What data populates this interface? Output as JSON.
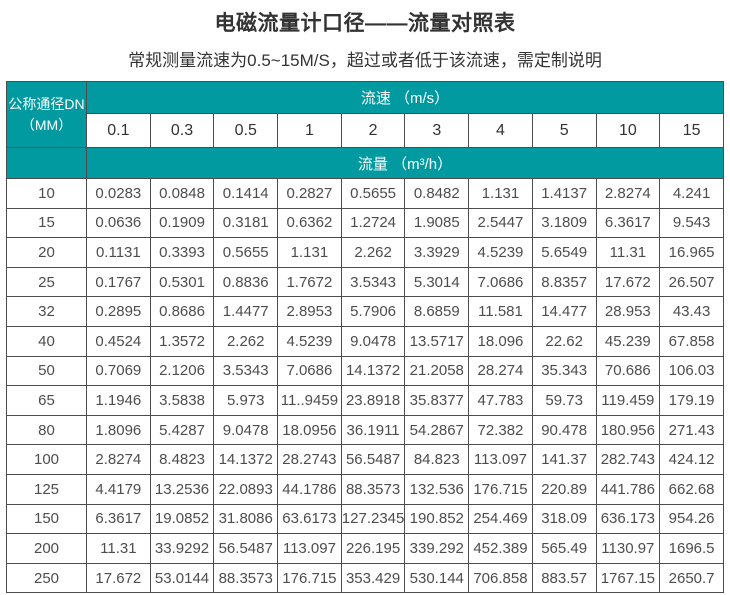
{
  "page": {
    "title": "电磁流量计口径——流量对照表",
    "subtitle": "常规测量流速为0.5~15M/S，超过或者低于该流速，需定制说明"
  },
  "colors": {
    "header_teal": "#009aa0",
    "border": "#4d4d4d",
    "body_text": "#4d4d4d"
  },
  "table": {
    "corner_header_line1": "公称通径DN",
    "corner_header_line2": "（MM）",
    "speed_header": "流速 （m/s）",
    "flow_header": "流量 （m³/h）",
    "speeds": [
      "0.1",
      "0.3",
      "0.5",
      "1",
      "2",
      "3",
      "4",
      "5",
      "10",
      "15"
    ],
    "rows": [
      {
        "dn": "10",
        "values": [
          "0.0283",
          "0.0848",
          "0.1414",
          "0.2827",
          "0.5655",
          "0.8482",
          "1.131",
          "1.4137",
          "2.8274",
          "4.241"
        ]
      },
      {
        "dn": "15",
        "values": [
          "0.0636",
          "0.1909",
          "0.3181",
          "0.6362",
          "1.2724",
          "1.9085",
          "2.5447",
          "3.1809",
          "6.3617",
          "9.543"
        ]
      },
      {
        "dn": "20",
        "values": [
          "0.1131",
          "0.3393",
          "0.5655",
          "1.131",
          "2.262",
          "3.3929",
          "4.5239",
          "5.6549",
          "11.31",
          "16.965"
        ]
      },
      {
        "dn": "25",
        "values": [
          "0.1767",
          "0.5301",
          "0.8836",
          "1.7672",
          "3.5343",
          "5.3014",
          "7.0686",
          "8.8357",
          "17.672",
          "26.507"
        ]
      },
      {
        "dn": "32",
        "values": [
          "0.2895",
          "0.8686",
          "1.4477",
          "2.8953",
          "5.7906",
          "8.6859",
          "11.581",
          "14.477",
          "28.953",
          "43.43"
        ]
      },
      {
        "dn": "40",
        "values": [
          "0.4524",
          "1.3572",
          "2.262",
          "4.5239",
          "9.0478",
          "13.5717",
          "18.096",
          "22.62",
          "45.239",
          "67.858"
        ]
      },
      {
        "dn": "50",
        "values": [
          "0.7069",
          "2.1206",
          "3.5343",
          "7.0686",
          "14.1372",
          "21.2058",
          "28.274",
          "35.343",
          "70.686",
          "106.03"
        ]
      },
      {
        "dn": "65",
        "values": [
          "1.1946",
          "3.5838",
          "5.973",
          "11..9459",
          "23.8918",
          "35.8377",
          "47.783",
          "59.73",
          "119.459",
          "179.19"
        ]
      },
      {
        "dn": "80",
        "values": [
          "1.8096",
          "5.4287",
          "9.0478",
          "18.0956",
          "36.1911",
          "54.2867",
          "72.382",
          "90.478",
          "180.956",
          "271.43"
        ]
      },
      {
        "dn": "100",
        "values": [
          "2.8274",
          "8.4823",
          "14.1372",
          "28.2743",
          "56.5487",
          "84.823",
          "113.097",
          "141.37",
          "282.743",
          "424.12"
        ]
      },
      {
        "dn": "125",
        "values": [
          "4.4179",
          "13.2536",
          "22.0893",
          "44.1786",
          "88.3573",
          "132.536",
          "176.715",
          "220.89",
          "441.786",
          "662.68"
        ]
      },
      {
        "dn": "150",
        "values": [
          "6.3617",
          "19.0852",
          "31.8086",
          "63.6173",
          "127.2345",
          "190.852",
          "254.469",
          "318.09",
          "636.173",
          "954.26"
        ]
      },
      {
        "dn": "200",
        "values": [
          "11.31",
          "33.9292",
          "56.5487",
          "113.097",
          "226.195",
          "339.292",
          "452.389",
          "565.49",
          "1130.97",
          "1696.5"
        ]
      },
      {
        "dn": "250",
        "values": [
          "17.672",
          "53.0144",
          "88.3573",
          "176.715",
          "353.429",
          "530.144",
          "706.858",
          "883.57",
          "1767.15",
          "2650.7"
        ]
      }
    ]
  }
}
